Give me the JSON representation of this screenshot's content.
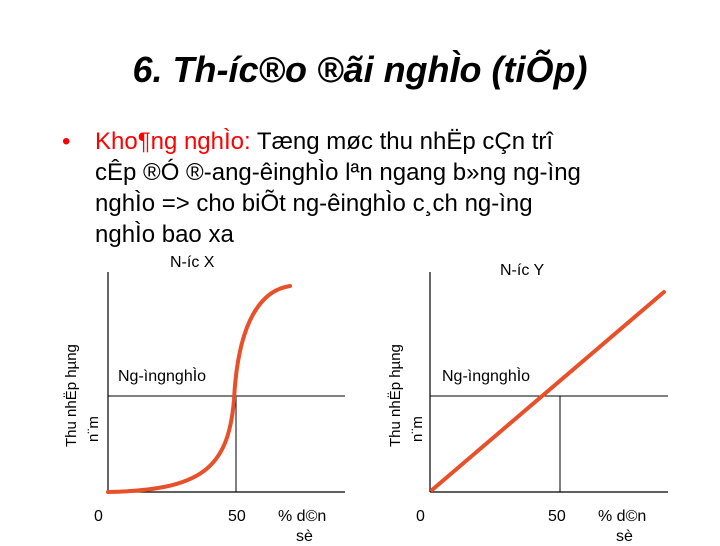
{
  "title": "6. Th-íc®o ®ãi nghÌo (tiÕp)",
  "bullet": {
    "term": "Kho¶ng nghÌo:",
    "lines": [
      " Tæng møc thu nhËp cÇn trî",
      "cÊp ®Ó ®-ang-êinghÌo lªn ngang b»ng ng-ìng",
      "nghÌo => cho biÕt ng-êinghÌo c¸ch ng-ìng",
      "nghÌo bao xa"
    ]
  },
  "chart_left": {
    "country_label": "N-íc X",
    "y_axis_label_line1": "Thu nhËp hµng",
    "y_axis_label_line2": "n¨m",
    "threshold_label": "Ng-ìngnghÌo",
    "x_tick_0": "0",
    "x_tick_50": "50",
    "x_axis_label_line1": "% d©n",
    "x_axis_label_line2": "sè"
  },
  "chart_right": {
    "country_label": "N-íc Y",
    "y_axis_label_line1": "Thu nhËp hµng",
    "y_axis_label_line2": "n¨m",
    "threshold_label": "Ng-ìngnghÌo",
    "x_tick_0": "0",
    "x_tick_50": "50",
    "x_axis_label_line1": "% d©n",
    "x_axis_label_line2": "sè"
  },
  "colors": {
    "curve": "#e8502a",
    "bullet": "#ff0000",
    "axis": "#000000"
  }
}
